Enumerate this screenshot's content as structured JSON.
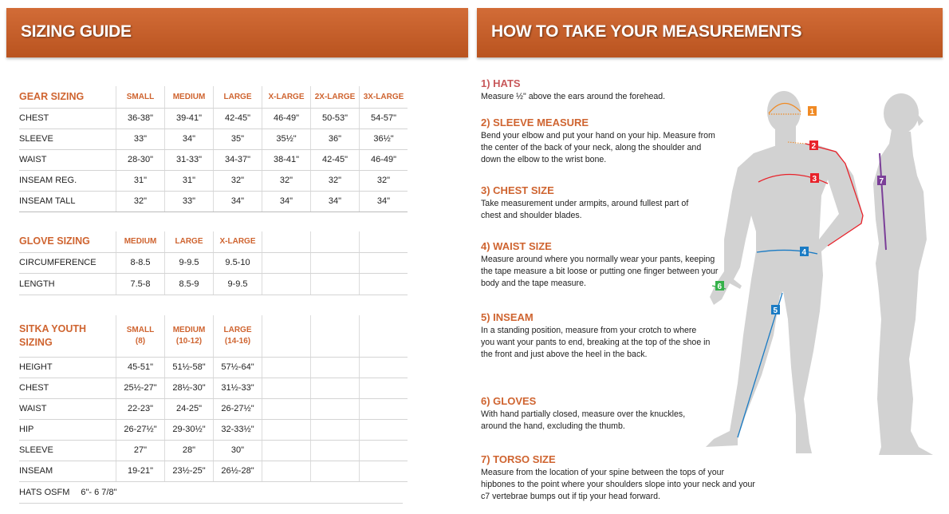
{
  "left": {
    "title": "SIZING GUIDE",
    "gear": {
      "header": [
        "GEAR SIZING",
        "SMALL",
        "MEDIUM",
        "LARGE",
        "X-LARGE",
        "2X-LARGE",
        "3X-LARGE"
      ],
      "rows": [
        [
          "CHEST",
          "36-38\"",
          "39-41\"",
          "42-45\"",
          "46-49\"",
          "50-53\"",
          "54-57\""
        ],
        [
          "SLEEVE",
          "33\"",
          "34\"",
          "35\"",
          "35½\"",
          "36\"",
          "36½\""
        ],
        [
          "WAIST",
          "28-30\"",
          "31-33\"",
          "34-37\"",
          "38-41\"",
          "42-45\"",
          "46-49\""
        ],
        [
          "INSEAM REG.",
          "31\"",
          "31\"",
          "32\"",
          "32\"",
          "32\"",
          "32\""
        ],
        [
          "INSEAM TALL",
          "32\"",
          "33\"",
          "34\"",
          "34\"",
          "34\"",
          "34\""
        ]
      ]
    },
    "glove": {
      "header": [
        "GLOVE SIZING",
        "MEDIUM",
        "LARGE",
        "X-LARGE",
        "",
        "",
        ""
      ],
      "rows": [
        [
          "CIRCUMFERENCE",
          "8-8.5",
          "9-9.5",
          "9.5-10",
          "",
          "",
          ""
        ],
        [
          "LENGTH",
          "7.5-8",
          "8.5-9",
          "9-9.5",
          "",
          "",
          ""
        ]
      ]
    },
    "youth": {
      "header": [
        "SITKA YOUTH SIZING",
        "SMALL (8)",
        "MEDIUM (10-12)",
        "LARGE (14-16)",
        "",
        "",
        ""
      ],
      "rows": [
        [
          "HEIGHT",
          "45-51\"",
          "51½-58\"",
          "57½-64\"",
          "",
          "",
          ""
        ],
        [
          "CHEST",
          "25½-27\"",
          "28½-30\"",
          "31½-33\"",
          "",
          "",
          ""
        ],
        [
          "WAIST",
          "22-23\"",
          "24-25\"",
          "26-27½\"",
          "",
          "",
          ""
        ],
        [
          "HIP",
          "26-27½\"",
          "29-30½\"",
          "32-33½\"",
          "",
          "",
          ""
        ],
        [
          "SLEEVE",
          "27\"",
          "28\"",
          "30\"",
          "",
          "",
          ""
        ],
        [
          "INSEAM",
          "19-21\"",
          "23½-25\"",
          "26½-28\"",
          "",
          "",
          ""
        ]
      ]
    },
    "hats": {
      "label": "HATS OSFM",
      "value": "6\"- 6 7/8\""
    }
  },
  "right": {
    "title": "HOW TO TAKE YOUR MEASUREMENTS",
    "steps": [
      {
        "title": "1) HATS",
        "text": "Measure ½\" above the ears around the forehead."
      },
      {
        "title": "2) SLEEVE MEASURE",
        "text": "Bend your elbow and put your hand on your hip. Measure from the center of the back of your neck, along the shoulder and down the elbow to the wrist bone."
      },
      {
        "title": "3) CHEST SIZE",
        "text": "Take measurement under armpits, around fullest part of chest and shoulder blades."
      },
      {
        "title": "4) WAIST SIZE",
        "text": "Measure around where you normally wear your pants, keeping the tape measure a bit loose or putting one finger between your body and the tape measure."
      },
      {
        "title": "5) INSEAM",
        "text": "In a standing position, measure from your crotch to where you want your pants to end, breaking at the top of the shoe in the front and just above the heel in the back."
      },
      {
        "title": "6) GLOVES",
        "text": "With hand partially closed, measure over the knuckles, around the hand, excluding the thumb."
      },
      {
        "title": "7) TORSO SIZE",
        "text": "Measure from the location of your spine between the tops of your hipbones to the point where your shoulders slope into your neck and your c7 vertebrae bumps out if tip your head forward."
      }
    ],
    "markers": [
      "1",
      "2",
      "3",
      "4",
      "5",
      "6",
      "7"
    ]
  },
  "colors": {
    "accent": "#cf6430",
    "banner": "#c45e2a",
    "silhouette": "#d2d2d2",
    "hat": "#f08a24",
    "sleeve": "#e8222a",
    "chest": "#e8222a",
    "waist": "#1a7bc4",
    "inseam": "#1a7bc4",
    "gloves": "#35b14a",
    "torso": "#7b3f98"
  }
}
